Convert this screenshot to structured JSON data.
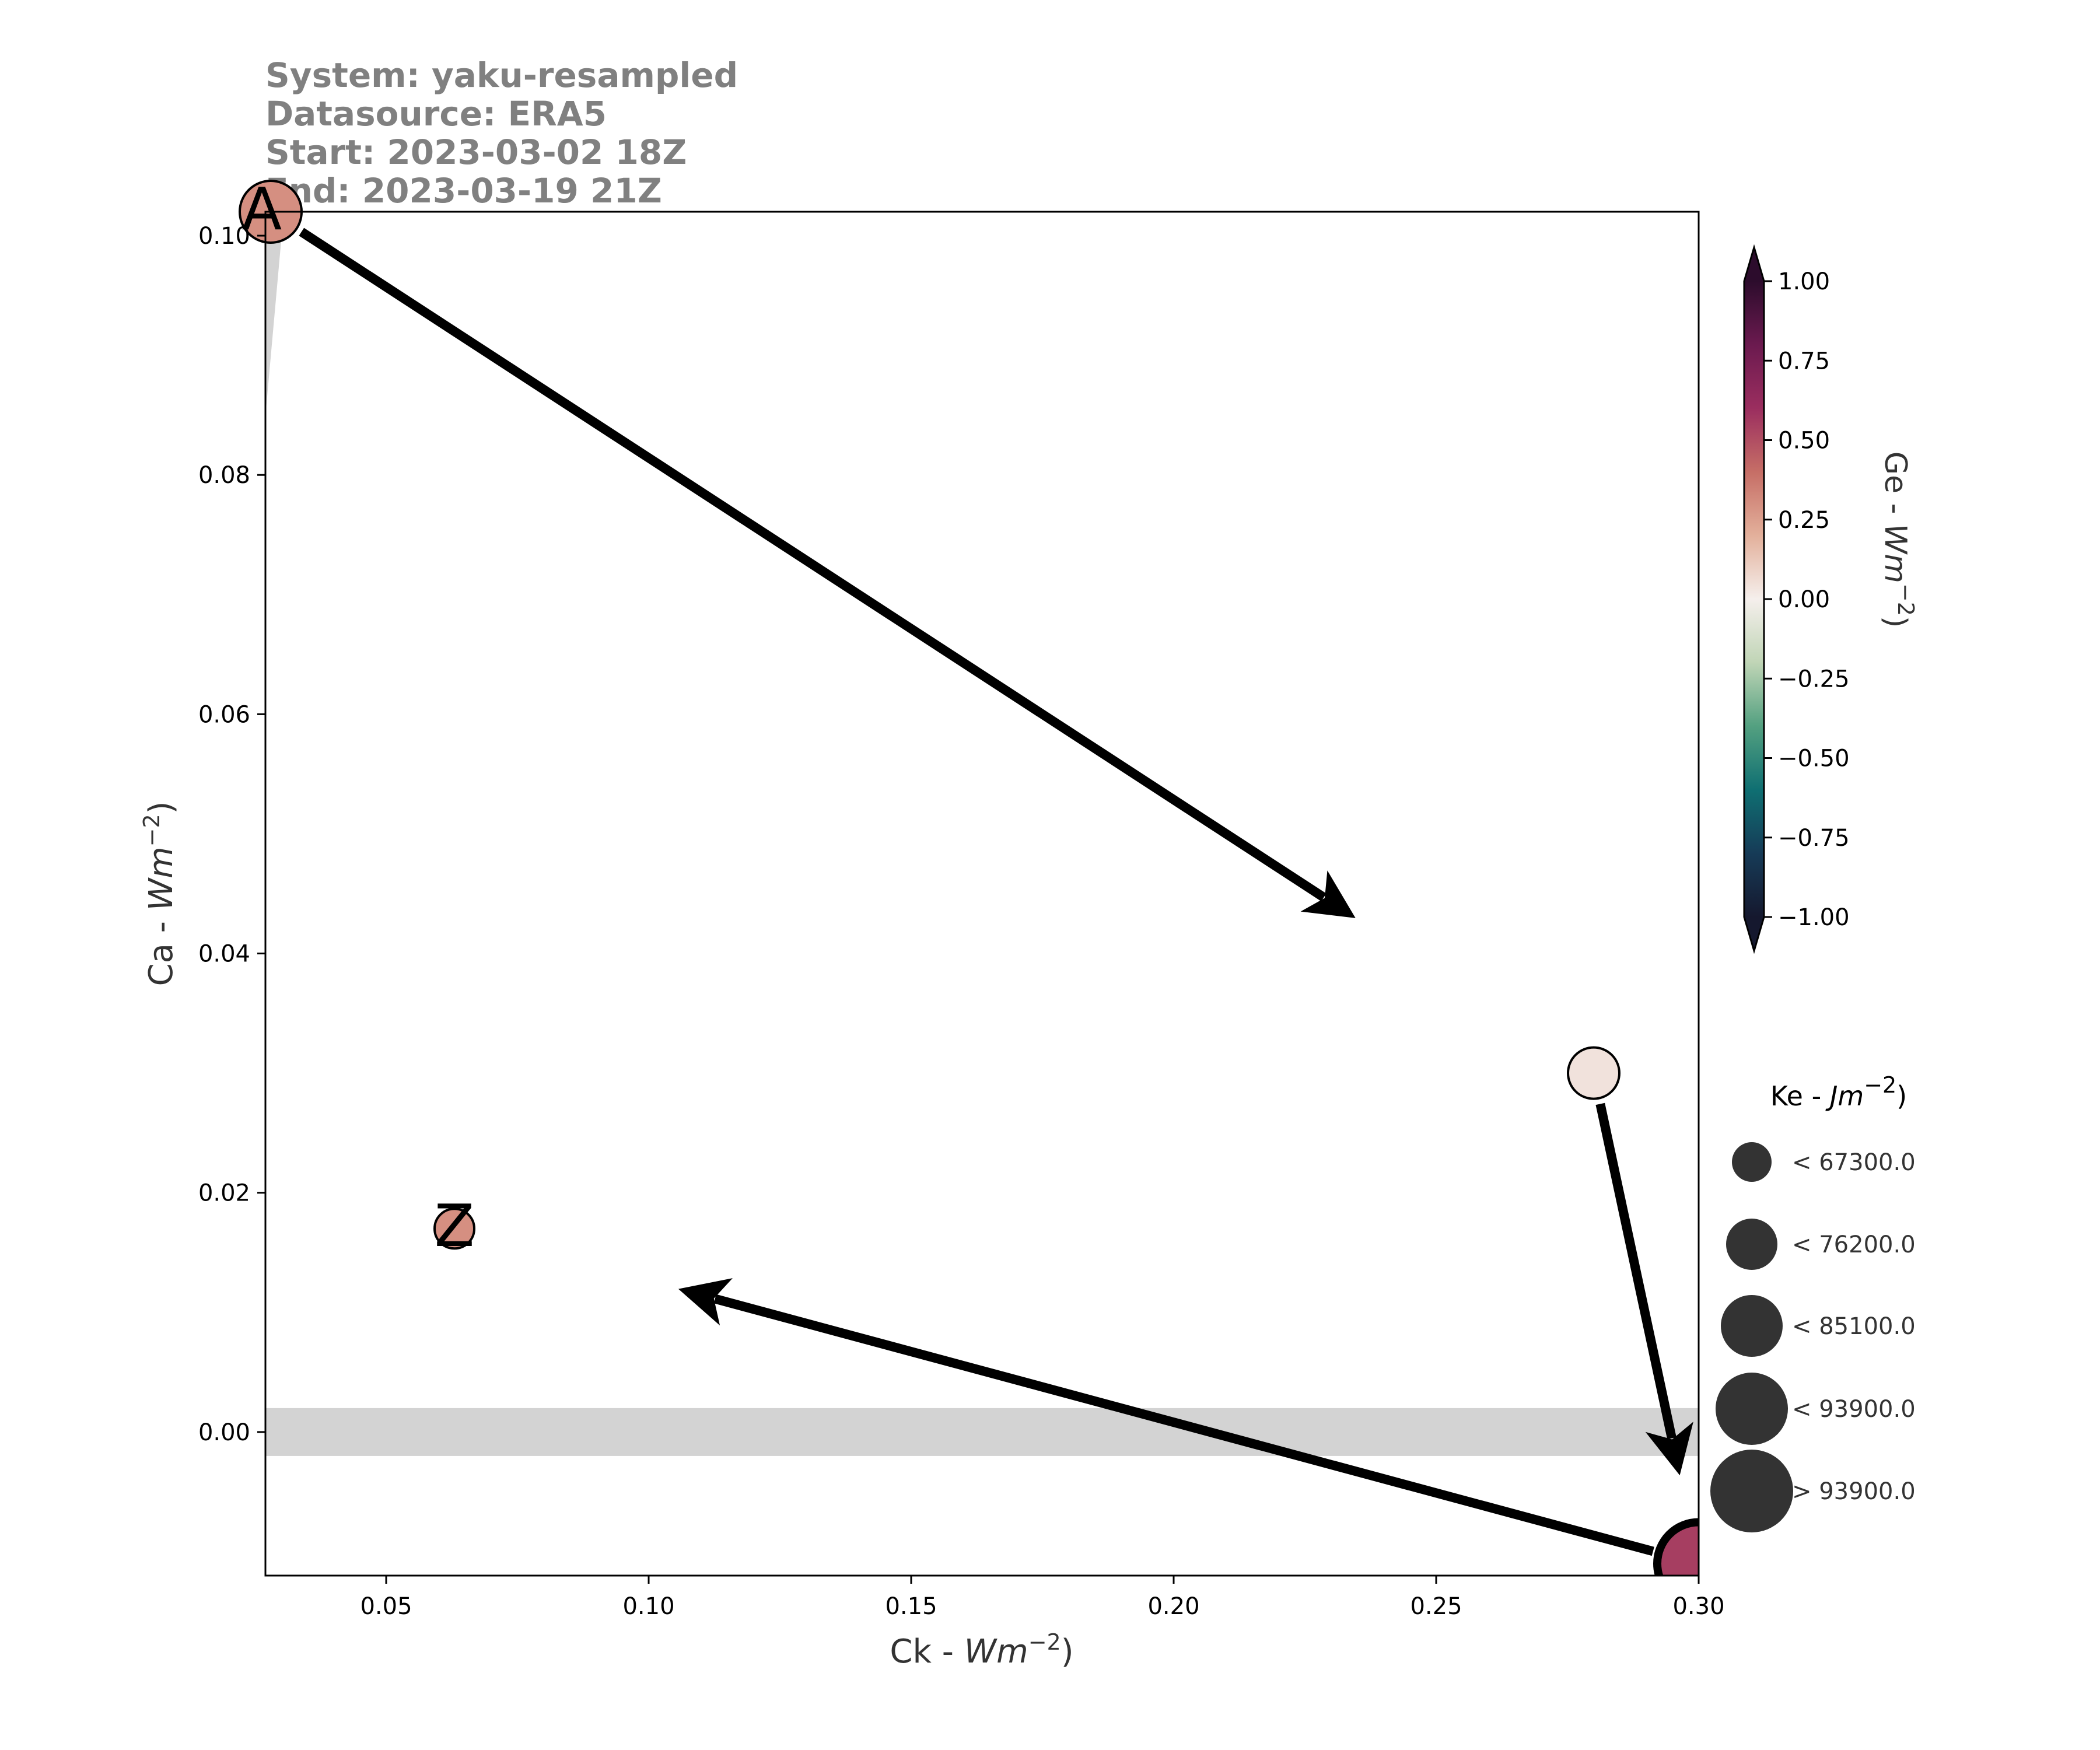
{
  "header": {
    "lines": [
      "System: yaku-resampled",
      "Datasource: ERA5",
      "Start: 2023-03-02 18Z",
      "End: 2023-03-19 21Z"
    ]
  },
  "chart_data": {
    "type": "scatter",
    "title": "",
    "xlabel": "Ck - Wm⁻²)",
    "ylabel": "Ca - Wm⁻²)",
    "xlim": [
      0.027,
      0.3
    ],
    "ylim": [
      -0.012,
      0.102
    ],
    "x_ticks": [
      0.05,
      0.1,
      0.15,
      0.2,
      0.25,
      0.3
    ],
    "x_tick_labels": [
      "0.05",
      "0.10",
      "0.15",
      "0.20",
      "0.25",
      "0.30"
    ],
    "y_ticks": [
      0.0,
      0.02,
      0.04,
      0.06,
      0.08,
      0.1
    ],
    "y_tick_labels": [
      "0.00",
      "0.02",
      "0.04",
      "0.06",
      "0.08",
      "0.10"
    ],
    "grid": false,
    "shaded_bands": [
      {
        "axis": "y",
        "range": [
          -0.002,
          0.002
        ],
        "color": "#d3d3d3"
      },
      {
        "axis": "x",
        "range": [
          0.027,
          0.0305
        ],
        "color": "#d3d3d3"
      }
    ],
    "points": [
      {
        "label": "A",
        "x": 0.028,
        "y": 0.102,
        "ge": 0.3,
        "ke_class": 2
      },
      {
        "label": "",
        "x": 0.28,
        "y": 0.03,
        "ge": 0.04,
        "ke_class": 1
      },
      {
        "label": "",
        "x": 0.3,
        "y": -0.011,
        "ge": 0.55,
        "ke_class": 4
      },
      {
        "label": "Z",
        "x": 0.063,
        "y": 0.017,
        "ge": 0.3,
        "ke_class": 0
      }
    ],
    "color_scale": {
      "label": "Ge - Wm⁻²)",
      "range": [
        -1.0,
        1.0
      ],
      "ticks": [
        1.0,
        0.75,
        0.5,
        0.25,
        0.0,
        -0.25,
        -0.5,
        -0.75,
        -1.0
      ],
      "tick_labels": [
        "1.00",
        "0.75",
        "0.50",
        "0.25",
        "0.00",
        "−0.25",
        "−0.50",
        "−0.75",
        "−1.00"
      ],
      "colors": [
        "#15182e",
        "#163b57",
        "#0f6f72",
        "#53a080",
        "#c0d5b6",
        "#f5efec",
        "#e3b09b",
        "#c66e66",
        "#9b2e5f",
        "#6b1a4f",
        "#2c0c2c"
      ]
    },
    "size_legend": {
      "title": "Ke - Jm⁻²)",
      "entries": [
        "< 67300.0",
        "< 76200.0",
        "< 85100.0",
        "< 93900.0",
        "> 93900.0"
      ]
    }
  }
}
